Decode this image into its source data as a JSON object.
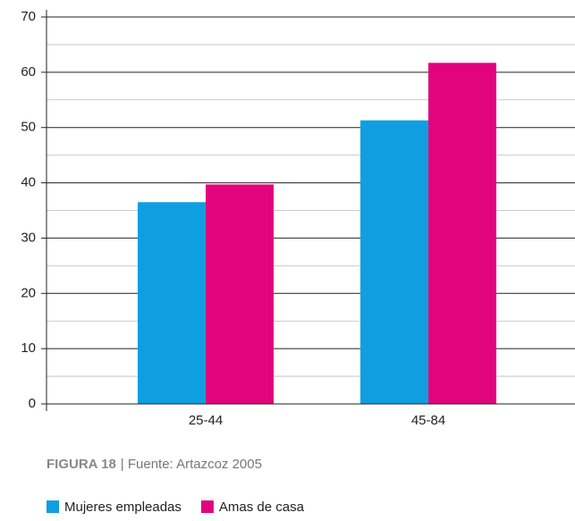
{
  "chart_data": {
    "type": "bar",
    "categories": [
      "25-44",
      "45-84"
    ],
    "series": [
      {
        "name": "Mujeres empleadas",
        "color": "#0f9fe0",
        "values": [
          36.5,
          51.3
        ]
      },
      {
        "name": "Amas de casa",
        "color": "#e2047d",
        "values": [
          39.7,
          61.7
        ]
      }
    ],
    "ylim": [
      0,
      70
    ],
    "yticks": [
      0,
      10,
      20,
      30,
      40,
      50,
      60,
      70
    ],
    "minor_yticks": [
      5,
      15,
      25,
      35,
      45,
      55,
      65
    ],
    "grid": true,
    "legend": "bottom",
    "figure_label": "FIGURA 18",
    "source": "| Fuente: Artazcoz 2005"
  }
}
